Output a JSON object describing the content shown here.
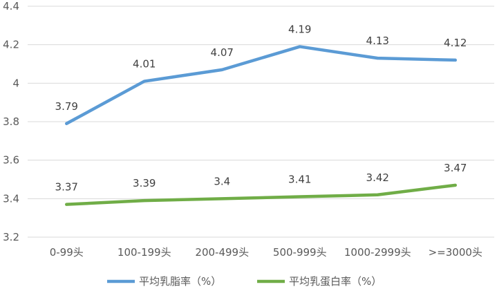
{
  "chart_data": {
    "type": "line",
    "categories": [
      "0-99头",
      "100-199头",
      "200-499头",
      "500-999头",
      "1000-2999头",
      ">=3000头"
    ],
    "series": [
      {
        "name": "平均乳脂率（%）",
        "values": [
          3.79,
          4.01,
          4.07,
          4.19,
          4.13,
          4.12
        ],
        "labels": [
          "3.79",
          "4.01",
          "4.07",
          "4.19",
          "4.13",
          "4.12"
        ],
        "color": "#5b9bd5"
      },
      {
        "name": "平均乳蛋白率（%）",
        "values": [
          3.37,
          3.39,
          3.4,
          3.41,
          3.42,
          3.47
        ],
        "labels": [
          "3.37",
          "3.39",
          "3.4",
          "3.41",
          "3.42",
          "3.47"
        ],
        "color": "#70ad47"
      }
    ],
    "ylim": [
      3.2,
      4.4
    ],
    "yticks": [
      "3.2",
      "3.4",
      "3.6",
      "3.8",
      "4",
      "4.2",
      "4.4"
    ],
    "grid": true,
    "gridColor": "#d9d9d9",
    "legend_position": "bottom",
    "title": "",
    "xlabel": "",
    "ylabel": ""
  }
}
